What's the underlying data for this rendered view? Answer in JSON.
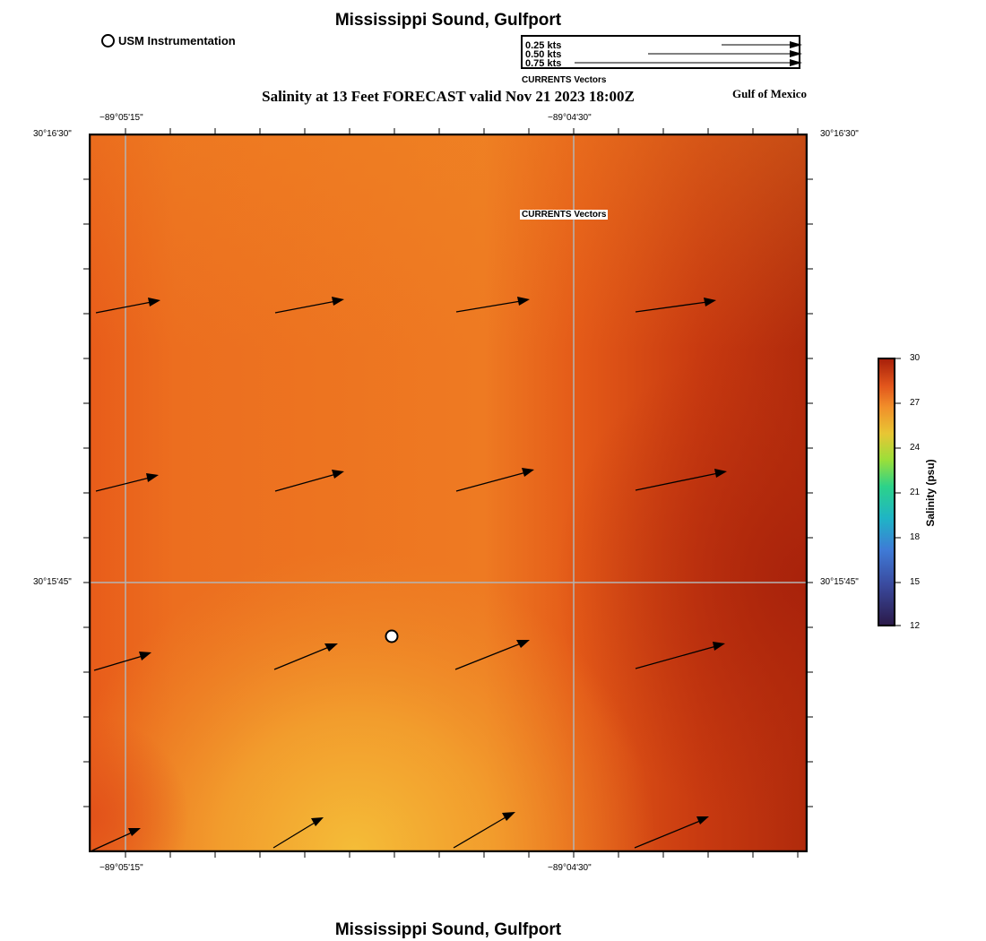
{
  "header": {
    "title": "Mississippi Sound, Gulfport",
    "subtitle": "Salinity at 13 Feet FORECAST valid Nov 21 2023 18:00Z",
    "region": "Gulf of Mexico"
  },
  "footer": {
    "title": "Mississippi Sound, Gulfport"
  },
  "station_legend": {
    "label": "USM Instrumentation"
  },
  "vector_legend": {
    "rows": [
      "0.25 kts",
      "0.50 kts",
      "0.75 kts"
    ],
    "caption": "CURRENTS Vectors"
  },
  "map": {
    "overlay_label": "CURRENTS Vectors",
    "lon_labels": [
      "−89°05'15\"",
      "−89°04'30\""
    ],
    "lat_labels": [
      "30°16'30\"",
      "30°15'45\""
    ],
    "colors": {
      "grid": "#b4b4b4",
      "warm": "#ee7a22",
      "hot": "#d64a14",
      "deep": "#a8220b",
      "yellow": "#f3b836",
      "arrow": "#000000"
    }
  },
  "colorbar": {
    "label": "Salinity (psu)",
    "ticks": [
      "30",
      "27",
      "24",
      "21",
      "18",
      "15",
      "12"
    ],
    "min": 12,
    "max": 30
  }
}
